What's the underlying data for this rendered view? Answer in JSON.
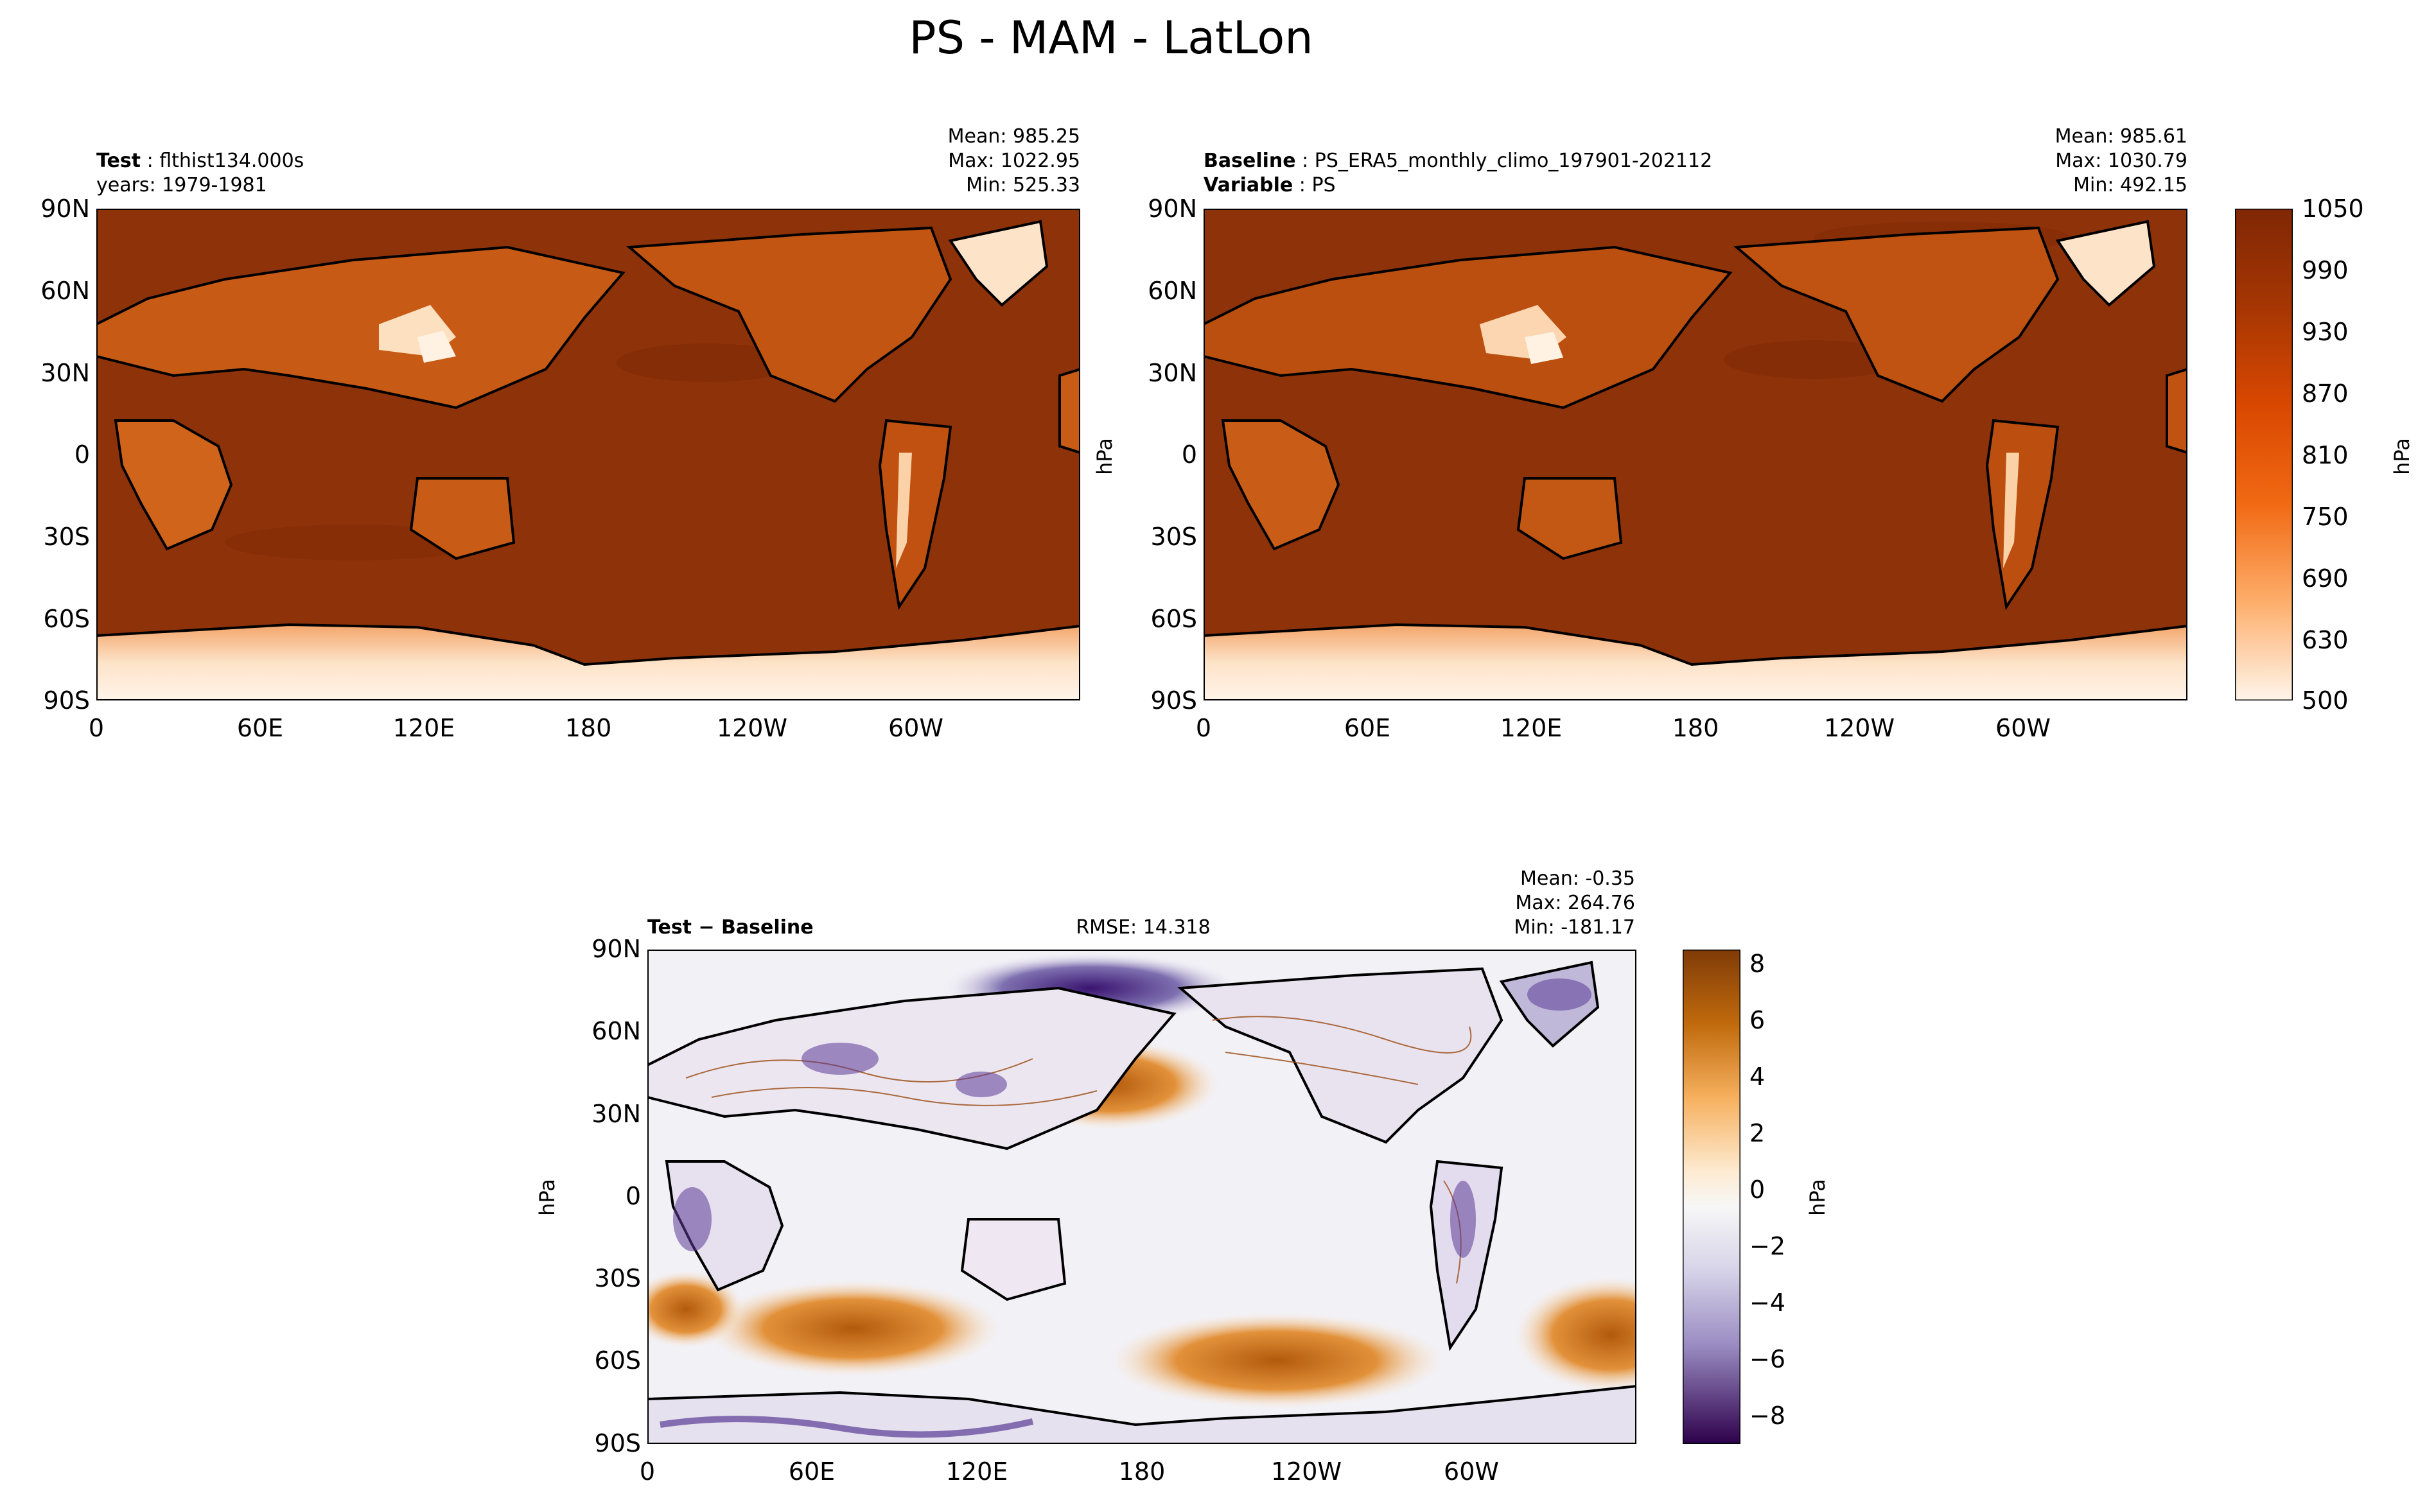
{
  "figure_title": "PS - MAM - LatLon",
  "chart_data": [
    {
      "type": "heatmap",
      "panel": "test",
      "label_bold": "Test",
      "label_name": "flthist134.000s",
      "label_line2": "years: 1979-1981",
      "stats": [
        "Mean: 985.25",
        "Max: 1022.95",
        "Min: 525.33"
      ],
      "mean": 985.25,
      "max": 1022.95,
      "min": 525.33,
      "xticks": [
        "0",
        "60E",
        "120E",
        "180",
        "120W",
        "60W"
      ],
      "yticks": [
        "90N",
        "60N",
        "30N",
        "0",
        "30S",
        "60S",
        "90S"
      ],
      "xlim": [
        0,
        360
      ],
      "ylim": [
        -90,
        90
      ],
      "units": "hPa"
    },
    {
      "type": "heatmap",
      "panel": "baseline",
      "label_bold": "Baseline",
      "label_name": "PS_ERA5_monthly_climo_197901-202112",
      "label2_bold": "Variable",
      "label2_name": "PS",
      "stats": [
        "Mean: 985.61",
        "Max: 1030.79",
        "Min: 492.15"
      ],
      "mean": 985.61,
      "max": 1030.79,
      "min": 492.15,
      "xticks": [
        "0",
        "60E",
        "120E",
        "180",
        "120W",
        "60W"
      ],
      "yticks": [
        "90N",
        "60N",
        "30N",
        "0",
        "30S",
        "60S",
        "90S"
      ],
      "xlim": [
        0,
        360
      ],
      "ylim": [
        -90,
        90
      ],
      "ylabel": "hPa",
      "colorbar": {
        "ticks": [
          "1050",
          "990",
          "930",
          "870",
          "810",
          "750",
          "690",
          "630",
          "500"
        ],
        "label": "hPa",
        "range": [
          500,
          1050
        ]
      }
    },
    {
      "type": "heatmap",
      "panel": "difference",
      "label_bold": "Test − Baseline",
      "center_text": "RMSE: 14.318",
      "rmse": 14.318,
      "stats": [
        "Mean: -0.35",
        "Max: 264.76",
        "Min: -181.17"
      ],
      "mean": -0.35,
      "max": 264.76,
      "min": -181.17,
      "xticks": [
        "0",
        "60E",
        "120E",
        "180",
        "120W",
        "60W"
      ],
      "yticks": [
        "90N",
        "60N",
        "30N",
        "0",
        "30S",
        "60S",
        "90S"
      ],
      "xlim": [
        0,
        360
      ],
      "ylim": [
        -90,
        90
      ],
      "ylabel": "hPa",
      "colorbar": {
        "ticks": [
          "8",
          "6",
          "4",
          "2",
          "0",
          "−2",
          "−4",
          "−6",
          "−8"
        ],
        "label": "hPa",
        "range": [
          -9,
          8.5
        ]
      }
    }
  ]
}
